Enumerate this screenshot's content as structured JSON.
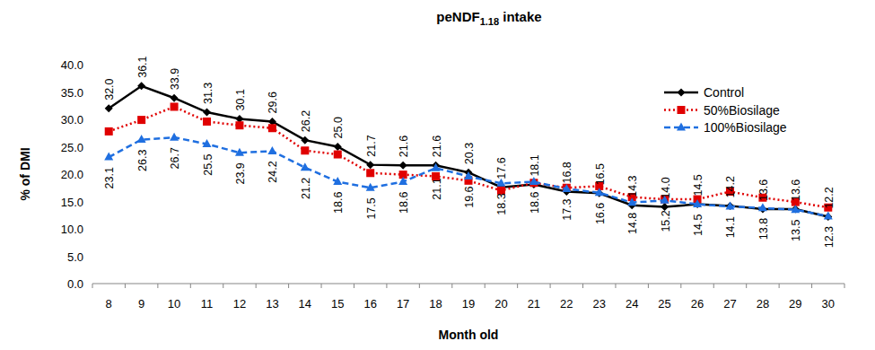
{
  "chart_data": {
    "type": "line",
    "title": "peNDF1.18 intake",
    "x_label": "Month old",
    "y_label": "% of DMI",
    "categories": [
      "8",
      "9",
      "10",
      "11",
      "12",
      "13",
      "14",
      "15",
      "16",
      "17",
      "18",
      "19",
      "20",
      "21",
      "22",
      "23",
      "24",
      "25",
      "26",
      "27",
      "28",
      "29",
      "30"
    ],
    "ylim": [
      0,
      40
    ],
    "yticks": [
      {
        "value": 0,
        "label": "0.0"
      },
      {
        "value": 5,
        "label": "5.0"
      },
      {
        "value": 10,
        "label": "10.0"
      },
      {
        "value": 15,
        "label": "15.0"
      },
      {
        "value": 20,
        "label": "20.0"
      },
      {
        "value": 25,
        "label": "25.0"
      },
      {
        "value": 30,
        "label": "30.0"
      },
      {
        "value": 35,
        "label": "35.0"
      },
      {
        "value": 40,
        "label": "40.0"
      }
    ],
    "grid": false,
    "legend": "upper right",
    "series": [
      {
        "name": "Control",
        "color": "#000000",
        "marker": "diamond",
        "line_style": "solid",
        "data_labels": true,
        "values": [
          32.0,
          36.1,
          33.9,
          31.3,
          30.1,
          29.6,
          26.2,
          25.0,
          21.7,
          21.6,
          21.6,
          20.3,
          17.6,
          18.1,
          16.8,
          16.5,
          14.3,
          14.0,
          14.5,
          14.2,
          13.6,
          13.6,
          12.2
        ]
      },
      {
        "name": "50%Biosilage",
        "color": "#e00000",
        "marker": "square",
        "line_style": "dotted",
        "data_labels": false,
        "values": [
          27.8,
          29.9,
          32.3,
          29.6,
          28.9,
          28.4,
          24.3,
          23.6,
          20.2,
          19.9,
          19.6,
          18.8,
          17.0,
          18.4,
          17.5,
          17.8,
          15.8,
          15.4,
          15.4,
          16.8,
          15.7,
          14.9,
          13.9
        ]
      },
      {
        "name": "100%Biosilage",
        "color": "#1f6fe0",
        "marker": "triangle",
        "line_style": "dashed",
        "data_labels": true,
        "values": [
          23.1,
          26.3,
          26.7,
          25.5,
          23.9,
          24.2,
          21.2,
          18.6,
          17.5,
          18.6,
          21.1,
          19.6,
          18.3,
          18.6,
          17.3,
          16.6,
          14.8,
          15.2,
          14.5,
          14.1,
          13.8,
          13.5,
          12.3
        ]
      }
    ]
  }
}
